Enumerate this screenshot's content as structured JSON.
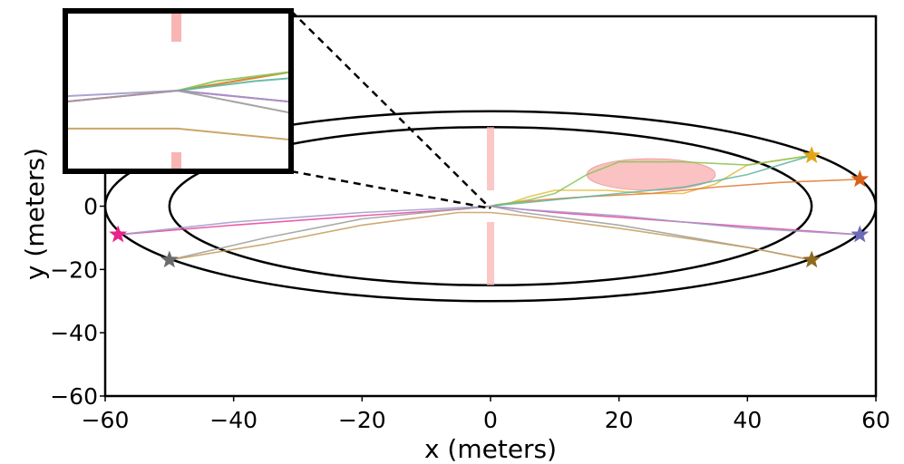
{
  "chart_data": {
    "type": "line",
    "title": "",
    "xlabel": "x (meters)",
    "ylabel": "y (meters)",
    "xlim": [
      -60,
      60
    ],
    "ylim": [
      -60,
      60
    ],
    "x_ticks": [
      -60,
      -40,
      -20,
      0,
      20,
      40,
      60
    ],
    "y_ticks": [
      -60,
      -40,
      -20,
      0
    ],
    "x_tick_labels": [
      "−60",
      "−40",
      "−20",
      "0",
      "20",
      "40",
      "60"
    ],
    "y_tick_labels": [
      "−60",
      "−40",
      "−20",
      "0"
    ],
    "grid": false,
    "legend": "none",
    "annotations": [
      {
        "type": "inset",
        "description": "magnified view of trajectories near origin (0,0)",
        "placement": "top-left"
      }
    ],
    "regions": {
      "outer_ellipse": {
        "cx": 0,
        "cy": 0,
        "rx": 60,
        "ry": 30
      },
      "inner_ellipse": {
        "cx": 0,
        "cy": 0,
        "rx": 50,
        "ry": 25
      },
      "obstacle_ellipse": {
        "cx": 25,
        "cy": 10,
        "rx": 10,
        "ry": 5,
        "color": "#f8a8a8"
      },
      "barriers": [
        {
          "x": 0,
          "y1": 5,
          "y2": 25,
          "color": "#f9b4b4"
        },
        {
          "x": 0,
          "y1": -25,
          "y2": -5,
          "color": "#f9b4b4"
        }
      ]
    },
    "series": [
      {
        "name": "yellow",
        "color": "#e6bb3c",
        "start": [
          50,
          16
        ],
        "x": [
          50,
          40,
          35,
          30,
          25,
          18,
          10,
          6,
          3,
          0
        ],
        "y": [
          16,
          13,
          7,
          4,
          4,
          5,
          5,
          3,
          1,
          0
        ]
      },
      {
        "name": "orange",
        "color": "#de7a35",
        "start": [
          57.5,
          8.5
        ],
        "x": [
          57.5,
          45,
          35,
          25,
          15,
          8,
          3,
          0
        ],
        "y": [
          8.5,
          7.5,
          6,
          4,
          3,
          2,
          1,
          0
        ]
      },
      {
        "name": "green",
        "color": "#88c455",
        "start": [
          50,
          16
        ],
        "x": [
          50,
          40,
          30,
          20,
          15,
          10,
          6,
          3,
          1,
          0
        ],
        "y": [
          16,
          13,
          14,
          14,
          10,
          4,
          2,
          1,
          0.5,
          0
        ]
      },
      {
        "name": "teal",
        "color": "#5ab59e",
        "start": [
          50,
          16
        ],
        "x": [
          50,
          40,
          30,
          20,
          10,
          5,
          2,
          0
        ],
        "y": [
          16,
          10,
          6,
          4,
          2,
          1,
          0.5,
          0
        ]
      },
      {
        "name": "pink",
        "color": "#e8429a",
        "start": [
          -58,
          -9
        ],
        "x": [
          -58,
          -40,
          -20,
          -5,
          0,
          10,
          30,
          57.5
        ],
        "y": [
          -9,
          -6,
          -3,
          -1,
          0,
          -2,
          -5,
          -9
        ]
      },
      {
        "name": "lavender",
        "color": "#9d9acb",
        "start": [
          57.5,
          -9
        ],
        "x": [
          57.5,
          40,
          20,
          5,
          0,
          -10,
          -20,
          -40,
          -58
        ],
        "y": [
          -9,
          -7,
          -3,
          -1,
          0,
          -1,
          -2,
          -5,
          -9
        ]
      },
      {
        "name": "gray",
        "color": "#9b9b9b",
        "start": [
          -50,
          -17
        ],
        "x": [
          -50,
          -35,
          -20,
          -5,
          0,
          5,
          20,
          40,
          50
        ],
        "y": [
          -17,
          -10,
          -4,
          -1,
          0,
          -2,
          -6,
          -13,
          -17
        ]
      },
      {
        "name": "brown",
        "color": "#c69b5a",
        "start": [
          50,
          -17
        ],
        "x": [
          50,
          40,
          20,
          5,
          0,
          -5,
          -20,
          -35,
          -50
        ],
        "y": [
          -17,
          -13,
          -7,
          -3,
          -2,
          -2,
          -6,
          -12,
          -17
        ]
      }
    ],
    "start_markers": [
      {
        "x": 50,
        "y": 16,
        "color": "#e2a619"
      },
      {
        "x": 57.5,
        "y": 8.5,
        "color": "#d8611a"
      },
      {
        "x": 57.5,
        "y": -9,
        "color": "#6d6bb8"
      },
      {
        "x": 50,
        "y": -17,
        "color": "#8f6a1f"
      },
      {
        "x": -58,
        "y": -9,
        "color": "#e8248a"
      },
      {
        "x": -50,
        "y": -17,
        "color": "#6b6b6b"
      }
    ]
  }
}
